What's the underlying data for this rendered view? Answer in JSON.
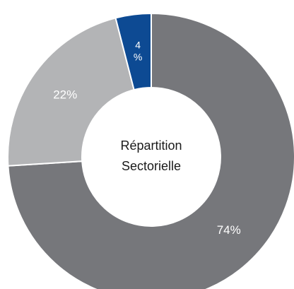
{
  "chart_data": {
    "type": "pie",
    "donut": true,
    "center_label": [
      "Répartition",
      "Sectorielle"
    ],
    "slices": [
      {
        "value": 74,
        "label": "74%",
        "color": "#76777b"
      },
      {
        "value": 22,
        "label": "22%",
        "color": "#b3b4b6"
      },
      {
        "value": 4,
        "label_lines": [
          "4",
          "%"
        ],
        "color": "#0d4a93"
      }
    ]
  }
}
